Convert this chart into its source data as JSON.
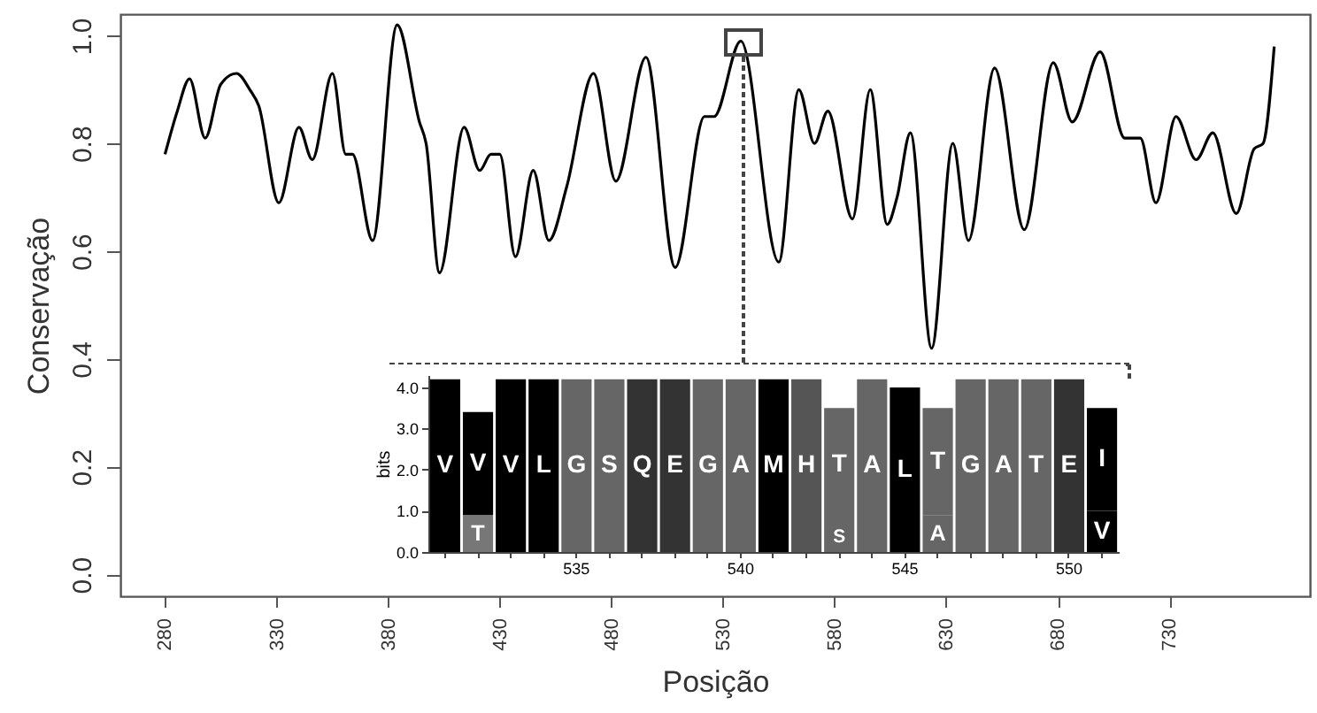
{
  "chart_data": [
    {
      "type": "line",
      "xlabel": "Posição",
      "ylabel": "Conservação",
      "xlim": [
        260,
        793
      ],
      "ylim": [
        -0.04,
        1.04
      ],
      "xticks": [
        280,
        330,
        380,
        430,
        480,
        530,
        580,
        630,
        680,
        730
      ],
      "yticks": [
        {
          "value": 0,
          "label": "0.0"
        },
        {
          "value": 0.2,
          "label": "0.2"
        },
        {
          "value": 0.4,
          "label": "0.4"
        },
        {
          "value": 0.6,
          "label": "0.6"
        },
        {
          "value": 0.8,
          "label": "0.8"
        },
        {
          "value": 1,
          "label": "1.0"
        }
      ],
      "grid": false,
      "marker": "none",
      "line_style": "solid",
      "series": [
        {
          "color": "#000000",
          "x": [
            280,
            285.5,
            291,
            298,
            305,
            312,
            318,
            322,
            331,
            340,
            346,
            355,
            361,
            364,
            373,
            384,
            394,
            397,
            403,
            414,
            421,
            426,
            430,
            437,
            445,
            452,
            460,
            472,
            482,
            495.5,
            508.6,
            521.7,
            526,
            538,
            555,
            564,
            571,
            577,
            588,
            596,
            603.6,
            608,
            614,
            623.5,
            633,
            640,
            651.7,
            665,
            678,
            686.5,
            699,
            710,
            717,
            724,
            733,
            742,
            749.5,
            760,
            768,
            772,
            777
          ],
          "values": [
            0.78,
            0.86,
            0.92,
            0.81,
            0.91,
            0.93,
            0.9,
            0.87,
            0.69,
            0.83,
            0.77,
            0.93,
            0.78,
            0.78,
            0.62,
            1.02,
            0.84,
            0.8,
            0.56,
            0.83,
            0.75,
            0.78,
            0.78,
            0.59,
            0.75,
            0.62,
            0.72,
            0.93,
            0.73,
            0.96,
            0.57,
            0.85,
            0.85,
            0.99,
            0.58,
            0.9,
            0.8,
            0.86,
            0.66,
            0.9,
            0.65,
            0.7,
            0.82,
            0.42,
            0.8,
            0.62,
            0.94,
            0.64,
            0.95,
            0.84,
            0.97,
            0.81,
            0.81,
            0.69,
            0.85,
            0.77,
            0.82,
            0.67,
            0.79,
            0.8,
            0.98
          ]
        }
      ]
    },
    {
      "type": "bar",
      "stacked": true,
      "ylabel": "bits",
      "ylim": [
        0,
        4.3
      ],
      "yticks": [
        {
          "value": 0,
          "label": "0.0"
        },
        {
          "value": 1,
          "label": "1.0"
        },
        {
          "value": 2,
          "label": "2.0"
        },
        {
          "value": 3,
          "label": "3.0"
        },
        {
          "value": 4,
          "label": "4.0"
        }
      ],
      "categories": [
        null,
        null,
        null,
        null,
        "535",
        null,
        null,
        null,
        null,
        "540",
        null,
        null,
        null,
        null,
        "545",
        null,
        null,
        null,
        null,
        "550",
        null
      ],
      "series": [
        {
          "values": [
            4.2,
            0.9,
            4.2,
            4.2,
            4.2,
            4.2,
            4.2,
            4.2,
            4.2,
            4.2,
            4.2,
            4.2,
            0.75,
            4.2,
            4.0,
            0.9,
            4.2,
            4.2,
            4.2,
            4.2,
            1.0
          ],
          "value_labels": [
            "V",
            "T",
            "V",
            "L",
            "G",
            "S",
            "Q",
            "E",
            "G",
            "A",
            "M",
            "H",
            "S",
            "A",
            "L",
            "A",
            "G",
            "A",
            "T",
            "E",
            "V"
          ],
          "colors": [
            "#000000",
            "#777777",
            "#000000",
            "#000000",
            "#666666",
            "#666666",
            "#333333",
            "#333333",
            "#666666",
            "#666666",
            "#000000",
            "#555555",
            "#666666",
            "#666666",
            "#000000",
            "#666666",
            "#666666",
            "#666666",
            "#666666",
            "#333333",
            "#000000"
          ]
        },
        {
          "values": [
            null,
            2.5,
            null,
            null,
            null,
            null,
            null,
            null,
            null,
            null,
            null,
            null,
            2.75,
            null,
            null,
            2.6,
            null,
            null,
            null,
            null,
            2.5
          ],
          "value_labels": [
            null,
            "V",
            null,
            null,
            null,
            null,
            null,
            null,
            null,
            null,
            null,
            null,
            "T",
            null,
            null,
            "T",
            null,
            null,
            null,
            null,
            "I"
          ],
          "colors": [
            null,
            "#000000",
            null,
            null,
            null,
            null,
            null,
            null,
            null,
            null,
            null,
            null,
            "#666666",
            null,
            null,
            "#666666",
            null,
            null,
            null,
            null,
            "#000000"
          ]
        }
      ]
    }
  ]
}
